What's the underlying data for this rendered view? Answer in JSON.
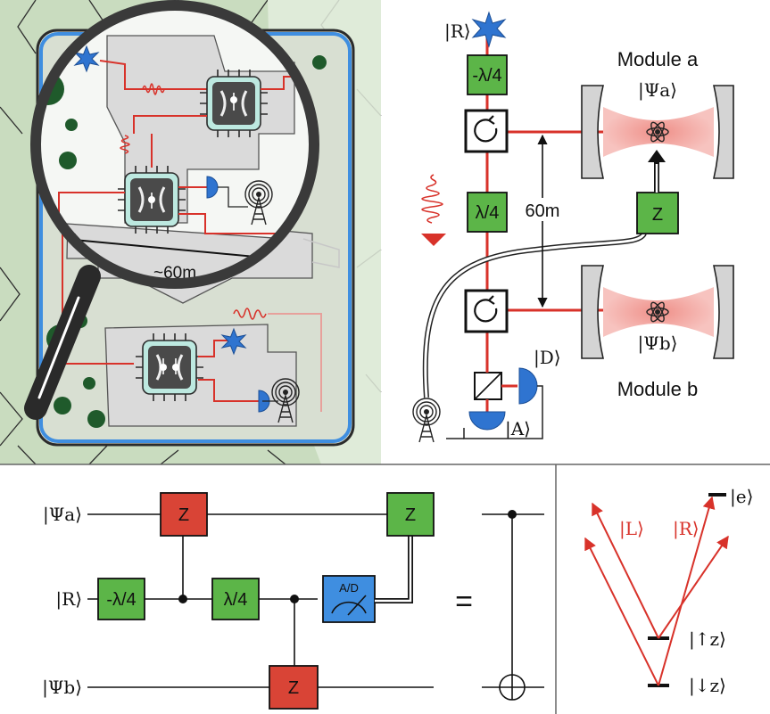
{
  "colors": {
    "map_bg": "#c9dcbf",
    "building": "#dadada",
    "laser_red": "#d8322a",
    "gate_green": "#5cb548",
    "gate_red": "#d94436",
    "gate_blue": "#3f8ee0",
    "cavity_field": "#f3a7a2",
    "lens_frame": "#3a3a3a",
    "star_blue": "#2f74d0"
  },
  "icons": [
    "antenna-icon",
    "star-photon-icon",
    "magnifier-icon",
    "circulator-icon",
    "beamsplitter-icon",
    "detector-icon",
    "atom-icon",
    "meter-icon"
  ],
  "map": {
    "distance_label": "~60m"
  },
  "setup": {
    "ket_R": "|R⟩",
    "module_a_title": "Module a",
    "module_a_state": "|Ψa⟩",
    "module_b_title": "Module b",
    "module_b_state": "|Ψb⟩",
    "minus_quarter_wave": "-λ/4",
    "quarter_wave": "λ/4",
    "distance": "60m",
    "z_gate": "Z",
    "ket_D": "|D⟩",
    "ket_A": "|A⟩"
  },
  "circuit": {
    "wire_psi_a": "|Ψa⟩",
    "wire_R": "|R⟩",
    "wire_psi_b": "|Ψb⟩",
    "gate_minus_quarter": "-λ/4",
    "gate_quarter": "λ/4",
    "gate_z": "Z",
    "measure_label": "A/D",
    "equals": "="
  },
  "levels": {
    "excited": "|e⟩",
    "up": "|↑z⟩",
    "down": "|↓z⟩",
    "left_pol": "|L⟩",
    "right_pol": "|R⟩"
  }
}
